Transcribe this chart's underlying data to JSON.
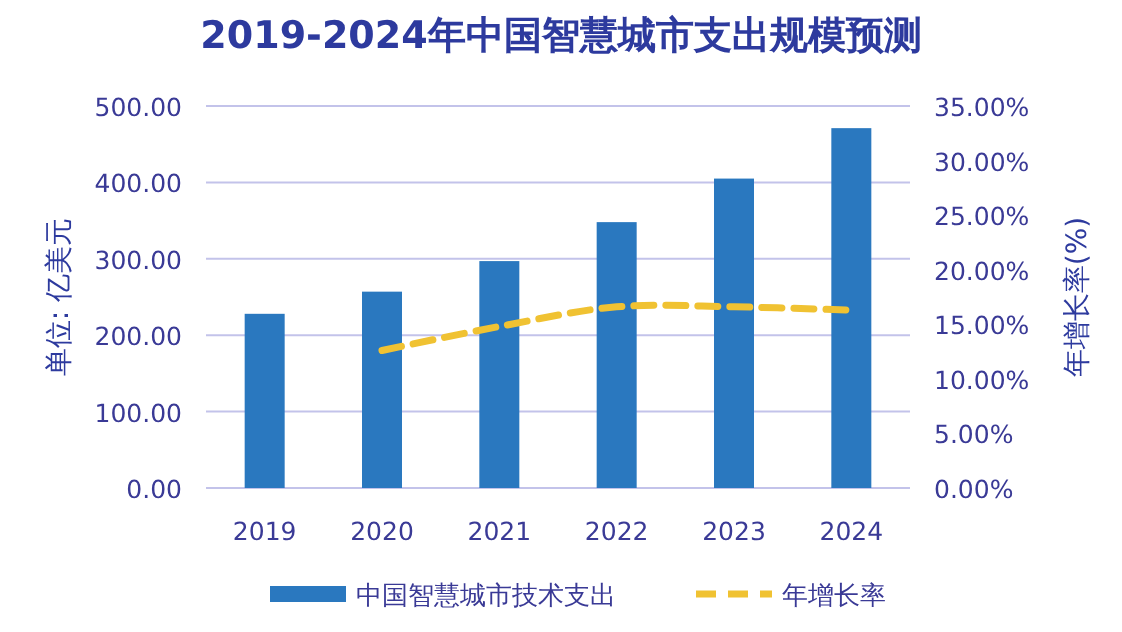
{
  "chart_data": {
    "type": "bar",
    "title": "2019-2024年中国智慧城市支出规模预测",
    "ylabel": "单位: 亿美元",
    "y2label": "年增长率(%)",
    "categories": [
      "2019",
      "2020",
      "2021",
      "2022",
      "2023",
      "2024"
    ],
    "series": [
      {
        "name": "中国智慧城市技术支出",
        "color": "#2a78bf",
        "values": [
          228,
          257,
          297,
          348,
          405,
          471
        ]
      },
      {
        "name": "年增长率",
        "type": "line",
        "axis": "y2",
        "color": "#f0c232",
        "line_style": "dashed",
        "values": [
          null,
          12.6,
          14.8,
          16.6,
          16.6,
          16.3
        ]
      }
    ],
    "ylim": [
      0,
      500
    ],
    "yticks": [
      {
        "value": 0,
        "label": "0.00"
      },
      {
        "value": 100,
        "label": "100.00"
      },
      {
        "value": 200,
        "label": "200.00"
      },
      {
        "value": 300,
        "label": "300.00"
      },
      {
        "value": 400,
        "label": "400.00"
      },
      {
        "value": 500,
        "label": "500.00"
      }
    ],
    "y2lim": [
      0,
      35
    ],
    "y2ticks": [
      {
        "value": 0,
        "label": "0.00%"
      },
      {
        "value": 5,
        "label": "5.00%"
      },
      {
        "value": 10,
        "label": "10.00%"
      },
      {
        "value": 15,
        "label": "15.00%"
      },
      {
        "value": 20,
        "label": "20.00%"
      },
      {
        "value": 25,
        "label": "25.00%"
      },
      {
        "value": 30,
        "label": "30.00%"
      },
      {
        "value": 35,
        "label": "35.00%"
      }
    ],
    "grid": "y",
    "legend": "bottom"
  }
}
